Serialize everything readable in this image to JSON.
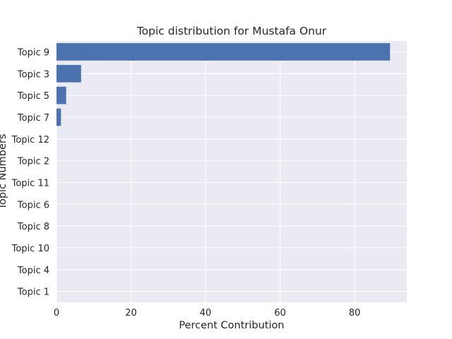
{
  "chart_data": {
    "type": "bar",
    "orientation": "horizontal",
    "title": "Topic distribution for Mustafa Onur",
    "xlabel": "Percent Contribution",
    "ylabel": "Topic Numbers",
    "categories": [
      "Topic 9",
      "Topic 3",
      "Topic 5",
      "Topic 7",
      "Topic 12",
      "Topic 2",
      "Topic 11",
      "Topic 6",
      "Topic 8",
      "Topic 10",
      "Topic 4",
      "Topic 1"
    ],
    "values": [
      89.5,
      6.6,
      2.6,
      1.2,
      0,
      0,
      0,
      0,
      0,
      0,
      0,
      0
    ],
    "xlim": [
      0,
      94
    ],
    "xticks": [
      0,
      20,
      40,
      60,
      80
    ],
    "grid": true,
    "colors": {
      "bar": "#4c72b0",
      "background": "#eaeaf2",
      "grid": "#ffffff"
    }
  }
}
